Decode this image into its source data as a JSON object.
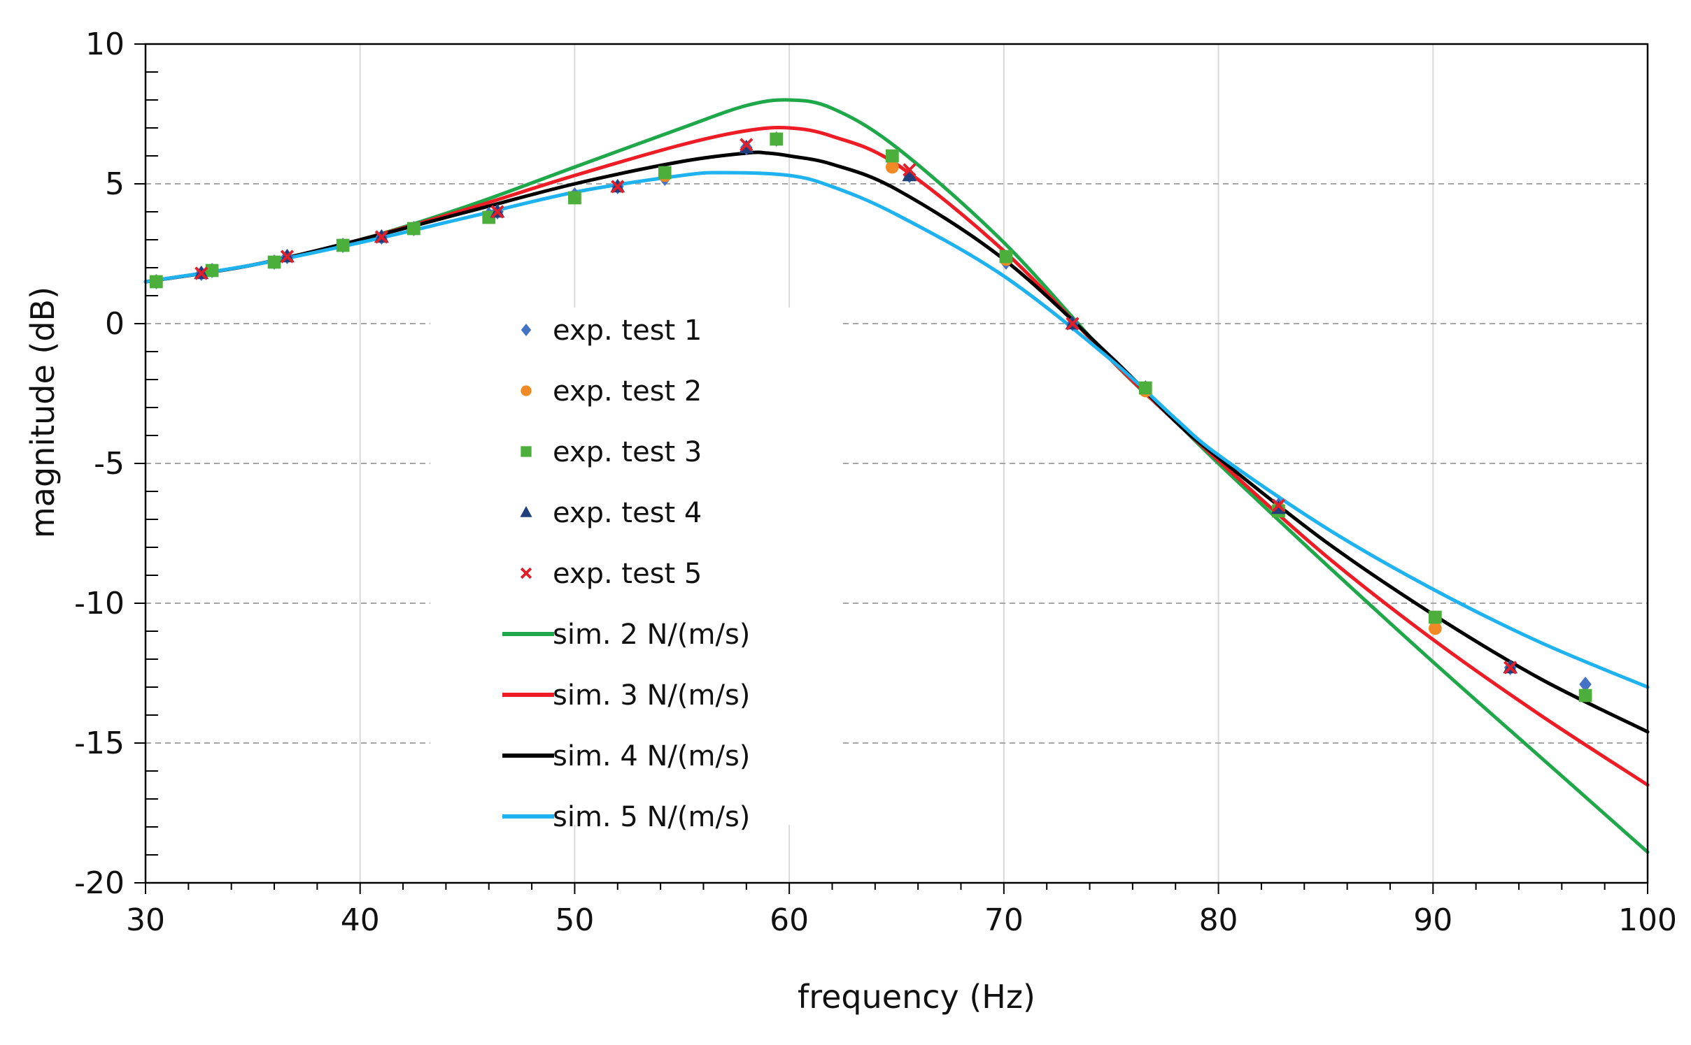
{
  "chart_data": {
    "type": "line",
    "title": "",
    "xlabel": "frequency (Hz)",
    "ylabel": "magnitude (dB)",
    "xlim": [
      30,
      100
    ],
    "ylim": [
      -20,
      10
    ],
    "xticks": [
      30,
      40,
      50,
      60,
      70,
      80,
      90,
      100
    ],
    "yticks": [
      10,
      5,
      0,
      -5,
      -10,
      -15,
      -20
    ],
    "x_minor_step": 2,
    "y_minor_step": 1,
    "legend_position": "center-left",
    "series": [
      {
        "name": "exp. test 1",
        "kind": "scatter",
        "marker": "diamond",
        "color": "#4472C4",
        "points": [
          [
            30.5,
            1.5
          ],
          [
            32.6,
            1.8
          ],
          [
            33.1,
            1.9
          ],
          [
            36,
            2.2
          ],
          [
            36.6,
            2.4
          ],
          [
            39.2,
            2.8
          ],
          [
            41,
            3.1
          ],
          [
            42.5,
            3.4
          ],
          [
            46,
            3.9
          ],
          [
            46.4,
            4
          ],
          [
            50,
            4.6
          ],
          [
            52,
            4.9
          ],
          [
            54.2,
            5.2
          ],
          [
            58,
            6.3
          ],
          [
            59.4,
            6.6
          ],
          [
            64.8,
            5.8
          ],
          [
            65.6,
            5.3
          ],
          [
            70.1,
            2.2
          ],
          [
            73.2,
            0
          ],
          [
            76.6,
            -2.3
          ],
          [
            82.8,
            -6.5
          ],
          [
            90.1,
            -10.6
          ],
          [
            93.6,
            -12.3
          ],
          [
            97.1,
            -12.9
          ]
        ]
      },
      {
        "name": "exp. test 2",
        "kind": "scatter",
        "marker": "circle",
        "color": "#F08A24",
        "points": [
          [
            30.5,
            1.5
          ],
          [
            33.1,
            1.9
          ],
          [
            36,
            2.2
          ],
          [
            39.2,
            2.8
          ],
          [
            42.5,
            3.4
          ],
          [
            46,
            3.8
          ],
          [
            50,
            4.5
          ],
          [
            54.2,
            5.3
          ],
          [
            59.4,
            6.6
          ],
          [
            64.8,
            5.6
          ],
          [
            70.1,
            2.3
          ],
          [
            76.6,
            -2.4
          ],
          [
            82.8,
            -6.6
          ],
          [
            90.1,
            -10.9
          ],
          [
            97.1,
            -13.3
          ]
        ]
      },
      {
        "name": "exp. test 3",
        "kind": "scatter",
        "marker": "square",
        "color": "#4CAF3C",
        "points": [
          [
            30.5,
            1.5
          ],
          [
            33.1,
            1.9
          ],
          [
            36,
            2.2
          ],
          [
            39.2,
            2.8
          ],
          [
            42.5,
            3.4
          ],
          [
            46,
            3.8
          ],
          [
            50,
            4.5
          ],
          [
            54.2,
            5.4
          ],
          [
            59.4,
            6.6
          ],
          [
            64.8,
            6
          ],
          [
            70.1,
            2.4
          ],
          [
            76.6,
            -2.3
          ],
          [
            82.8,
            -6.7
          ],
          [
            90.1,
            -10.5
          ],
          [
            97.1,
            -13.3
          ]
        ]
      },
      {
        "name": "exp. test 4",
        "kind": "scatter",
        "marker": "triangle",
        "color": "#1F3F7A",
        "points": [
          [
            32.6,
            1.8
          ],
          [
            36.6,
            2.4
          ],
          [
            41,
            3.1
          ],
          [
            46.4,
            4
          ],
          [
            52,
            4.9
          ],
          [
            58,
            6.3
          ],
          [
            65.6,
            5.3
          ],
          [
            73.2,
            0
          ],
          [
            82.8,
            -6.6
          ],
          [
            93.6,
            -12.3
          ]
        ]
      },
      {
        "name": "exp. test 5",
        "kind": "scatter",
        "marker": "x",
        "color": "#E0202A",
        "points": [
          [
            32.6,
            1.8
          ],
          [
            36.6,
            2.4
          ],
          [
            41,
            3.1
          ],
          [
            46.4,
            4
          ],
          [
            52,
            4.9
          ],
          [
            58,
            6.4
          ],
          [
            65.6,
            5.5
          ],
          [
            73.2,
            0
          ],
          [
            82.8,
            -6.5
          ],
          [
            93.6,
            -12.3
          ]
        ]
      },
      {
        "name": "sim. 2 N/(m/s)",
        "kind": "line",
        "color": "#1FA84A",
        "x": [
          30,
          35,
          40,
          45,
          50,
          55,
          58,
          60,
          62,
          65,
          70,
          75,
          78,
          80,
          85,
          90,
          95,
          100
        ],
        "y": [
          1.5,
          2.1,
          3,
          4.2,
          5.6,
          7,
          7.8,
          8,
          7.7,
          6.3,
          2.9,
          -1.3,
          -3.5,
          -5,
          -8.6,
          -12.1,
          -15.5,
          -18.9
        ]
      },
      {
        "name": "sim. 3 N/(m/s)",
        "kind": "line",
        "color": "#EE1C24",
        "x": [
          30,
          35,
          40,
          45,
          50,
          55,
          58,
          60,
          62,
          65,
          70,
          75,
          78,
          80,
          85,
          90,
          95,
          100
        ],
        "y": [
          1.5,
          2.1,
          3,
          4.1,
          5.3,
          6.4,
          6.9,
          7,
          6.7,
          5.7,
          2.6,
          -1.3,
          -3.5,
          -4.9,
          -8.3,
          -11.3,
          -14,
          -16.5
        ]
      },
      {
        "name": "sim. 4 N/(m/s)",
        "kind": "line",
        "color": "#000000",
        "x": [
          30,
          35,
          40,
          45,
          50,
          55,
          58,
          59,
          60,
          62,
          65,
          70,
          75,
          78,
          80,
          85,
          90,
          95,
          100
        ],
        "y": [
          1.5,
          2.1,
          3,
          4,
          5,
          5.8,
          6.1,
          6.1,
          6,
          5.7,
          4.8,
          2.3,
          -1.2,
          -3.5,
          -4.8,
          -7.8,
          -10.4,
          -12.7,
          -14.6
        ]
      },
      {
        "name": "sim. 5 N/(m/s)",
        "kind": "line",
        "color": "#1EB3F0",
        "x": [
          30,
          35,
          40,
          45,
          50,
          55,
          57,
          60,
          62,
          65,
          70,
          75,
          78,
          80,
          85,
          90,
          95,
          100
        ],
        "y": [
          1.5,
          2.1,
          2.9,
          3.8,
          4.7,
          5.3,
          5.4,
          5.3,
          4.9,
          3.9,
          1.7,
          -1.3,
          -3.4,
          -4.7,
          -7.3,
          -9.5,
          -11.4,
          -13
        ]
      }
    ]
  }
}
